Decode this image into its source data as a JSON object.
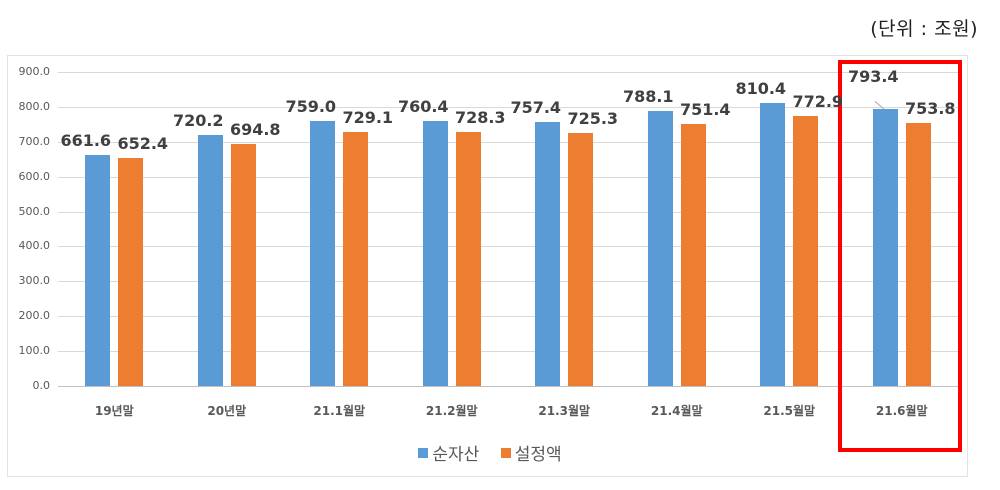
{
  "unit_label": "(단위 : 조원)",
  "chart_data": {
    "type": "bar",
    "title": "",
    "xlabel": "",
    "ylabel": "",
    "unit": "조원",
    "ylim": [
      0,
      900
    ],
    "yticks": [
      "0.0",
      "100.0",
      "200.0",
      "300.0",
      "400.0",
      "500.0",
      "600.0",
      "700.0",
      "800.0",
      "900.0"
    ],
    "grid": true,
    "legend_position": "bottom",
    "categories": [
      "19년말",
      "20년말",
      "21.1월말",
      "21.2월말",
      "21.3월말",
      "21.4월말",
      "21.5월말",
      "21.6월말"
    ],
    "series": [
      {
        "name": "순자산",
        "color": "#5b9bd5",
        "values": [
          661.6,
          720.2,
          759.0,
          760.4,
          757.4,
          788.1,
          810.4,
          793.4
        ],
        "labels": [
          "661.6",
          "720.2",
          "759.0",
          "760.4",
          "757.4",
          "788.1",
          "810.4",
          "793.4"
        ]
      },
      {
        "name": "설정액",
        "color": "#ed7d31",
        "values": [
          652.4,
          694.8,
          729.1,
          728.3,
          725.3,
          751.4,
          772.9,
          753.8
        ],
        "labels": [
          "652.4",
          "694.8",
          "729.1",
          "728.3",
          "725.3",
          "751.4",
          "772.9",
          "753.8"
        ]
      }
    ],
    "annotations": [
      {
        "type": "highlight-box",
        "target_category": "21.6월말",
        "color": "#ff0000"
      }
    ]
  },
  "legend": {
    "items": [
      {
        "label": "순자산",
        "color": "#5b9bd5"
      },
      {
        "label": "설정액",
        "color": "#ed7d31"
      }
    ]
  }
}
